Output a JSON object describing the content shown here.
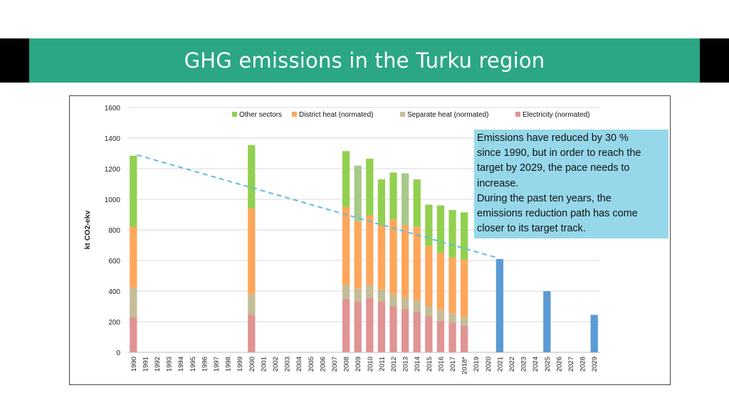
{
  "slide": {
    "title": "GHG emissions in the Turku region"
  },
  "annotation": {
    "lines": [
      "Emissions have reduced by 30 %",
      "since 1990, but in order to reach the",
      "target by 2029, the pace needs to",
      "increase.",
      "During the past ten years, the",
      "emissions reduction path has come",
      "closer to its target track."
    ]
  },
  "colors": {
    "header_band": "#2ba785",
    "header_side": "#000000",
    "other_sectors": "#92d050",
    "district_heat": "#ffa65a",
    "separate_heat": "#c4bd97",
    "electricity": "#e09494",
    "target": "#5b9bd5",
    "trend_line": "#5fbde3",
    "note_box": "#96d8ea"
  },
  "chart_data": {
    "type": "bar",
    "stacked": true,
    "ylabel": "kt CO2-ekv",
    "ylim": [
      0,
      1600
    ],
    "yticks": [
      0,
      200,
      400,
      600,
      800,
      1000,
      1200,
      1400,
      1600
    ],
    "grid": true,
    "legend_position": "top",
    "categories": [
      "1990",
      "1991",
      "1992",
      "1993",
      "1994",
      "1995",
      "1996",
      "1997",
      "1998",
      "1999",
      "2000",
      "2001",
      "2002",
      "2003",
      "2004",
      "2005",
      "2006",
      "2007",
      "2008",
      "2009",
      "2010",
      "2011",
      "2012",
      "2013",
      "2014",
      "2015",
      "2016",
      "2017",
      "2018*",
      "2019",
      "2020",
      "2021",
      "2022",
      "2023",
      "2024",
      "2025",
      "2026",
      "2027",
      "2028",
      "2029"
    ],
    "series": [
      {
        "name": "Electricity (normated)",
        "color": "#e09494",
        "values": [
          230,
          null,
          null,
          null,
          null,
          null,
          null,
          null,
          null,
          null,
          245,
          null,
          null,
          null,
          null,
          null,
          null,
          null,
          350,
          330,
          355,
          330,
          300,
          285,
          265,
          235,
          205,
          195,
          175,
          null,
          null,
          null,
          null,
          null,
          null,
          null,
          null,
          null,
          null,
          null
        ]
      },
      {
        "name": "Separate heat (normated)",
        "color": "#c4bd97",
        "values": [
          195,
          null,
          null,
          null,
          null,
          null,
          null,
          null,
          null,
          null,
          135,
          null,
          null,
          null,
          null,
          null,
          null,
          null,
          90,
          85,
          85,
          80,
          80,
          75,
          75,
          65,
          70,
          60,
          55,
          null,
          null,
          null,
          null,
          null,
          null,
          null,
          null,
          null,
          null,
          null
        ]
      },
      {
        "name": "District heat (normated)",
        "color": "#ffa65a",
        "values": [
          395,
          null,
          null,
          null,
          null,
          null,
          null,
          null,
          null,
          null,
          560,
          null,
          null,
          null,
          null,
          null,
          null,
          null,
          510,
          440,
          455,
          420,
          490,
          470,
          480,
          395,
          375,
          365,
          375,
          null,
          null,
          null,
          null,
          null,
          null,
          null,
          null,
          null,
          null,
          null
        ]
      },
      {
        "name": "Other sectors",
        "color": "#92d050",
        "values": [
          465,
          null,
          null,
          null,
          null,
          null,
          null,
          null,
          null,
          null,
          415,
          null,
          null,
          null,
          null,
          null,
          null,
          null,
          365,
          365,
          370,
          300,
          305,
          340,
          310,
          270,
          310,
          310,
          310,
          null,
          null,
          null,
          null,
          null,
          null,
          null,
          null,
          null,
          null,
          null
        ]
      }
    ],
    "targets": [
      {
        "category": "2021",
        "value": 610
      },
      {
        "category": "2025",
        "value": 400
      },
      {
        "category": "2029",
        "value": 245
      }
    ],
    "separate_heat_highlight_years": [
      "2009",
      "2013"
    ],
    "trend_line": {
      "from": {
        "category": "1990",
        "value": 1290
      },
      "to": {
        "category": "2021",
        "value": 620
      },
      "style": "dashed"
    }
  }
}
